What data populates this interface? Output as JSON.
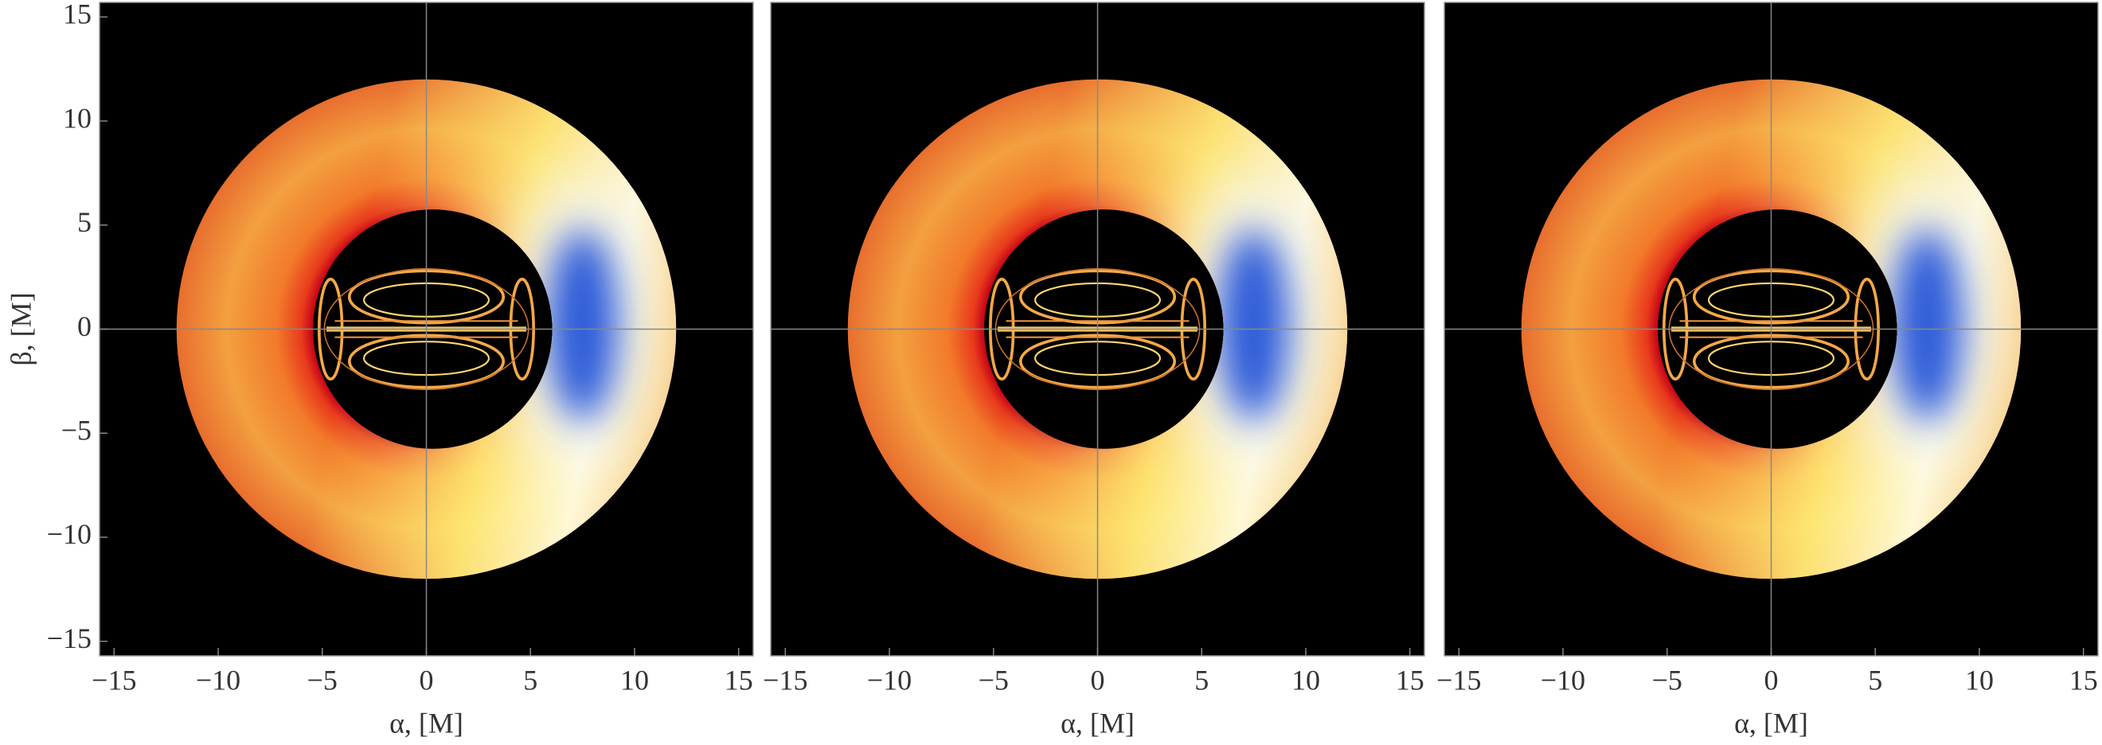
{
  "chart_data": [
    {
      "type": "image",
      "xlim": [
        -15.7,
        15.7
      ],
      "ylim": [
        -15.7,
        15.7
      ],
      "xticks": [
        {
          "value": -15,
          "label": "−15"
        },
        {
          "value": -10,
          "label": "−10"
        },
        {
          "value": -5,
          "label": "−5"
        },
        0,
        5,
        10,
        15
      ],
      "yticks": [
        {
          "value": -15,
          "label": "−15"
        },
        {
          "value": -10,
          "label": "−10"
        },
        {
          "value": -5,
          "label": "−5"
        },
        0,
        5,
        10,
        15
      ],
      "xlabel": "α, [M]",
      "ylabel": "β, [M]"
    },
    {
      "type": "image",
      "xlim": [
        -15.7,
        15.7
      ],
      "ylim": [
        -15.7,
        15.7
      ],
      "xticks": [
        {
          "value": -15,
          "label": "−15"
        },
        {
          "value": -10,
          "label": "−10"
        },
        {
          "value": -5,
          "label": "−5"
        },
        0,
        5,
        10,
        15
      ],
      "xlabel": "α, [M]"
    },
    {
      "type": "image",
      "xlim": [
        -15.7,
        15.7
      ],
      "ylim": [
        -15.7,
        15.7
      ],
      "xticks": [
        {
          "value": -15,
          "label": "−15"
        },
        {
          "value": -10,
          "label": "−10"
        },
        {
          "value": -5,
          "label": "−5"
        },
        0,
        5,
        10,
        15
      ],
      "xlabel": "α, [M]"
    }
  ]
}
